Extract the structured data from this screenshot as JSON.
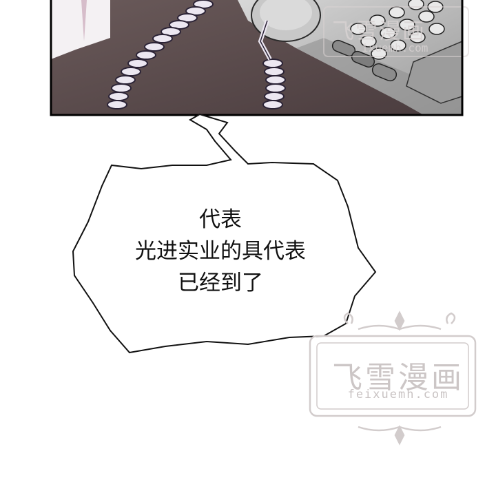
{
  "speech_bubble": {
    "lines": [
      "代表",
      "光进实业的具代表",
      "已经到了"
    ]
  },
  "watermark_top": {
    "title": "飞雪漫画",
    "url": "ixuemh.com"
  },
  "watermark_bottom": {
    "title": "飞雪漫画",
    "url": "feixuemh.com"
  },
  "colors": {
    "desk": "#5a4a4a",
    "frame_border": "#000000",
    "phone_body": "#bdbdbd",
    "cord": "#ebe6f0",
    "watermark": "#d2cccc"
  }
}
